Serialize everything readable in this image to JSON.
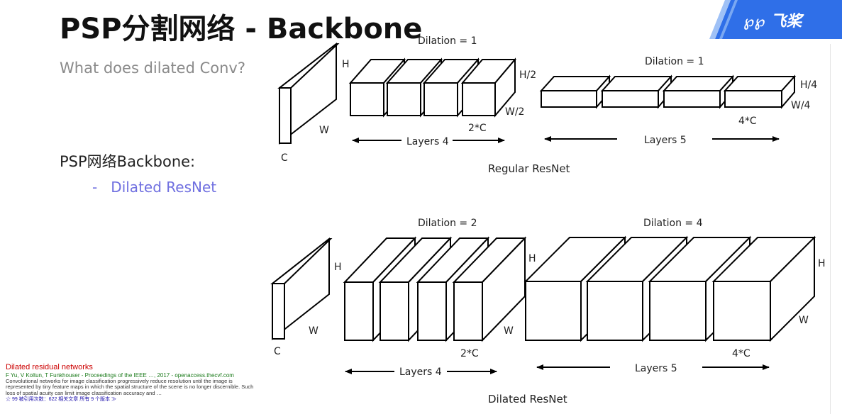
{
  "slide": {
    "title": "PSP分割网络 - Backbone",
    "subtitle": "What does dilated Conv?",
    "section_label": "PSP网络Backbone:",
    "bullet_dash": "-",
    "bullet_text": "Dilated ResNet",
    "logo_text": "飞桨",
    "logo_mark": "℘℘",
    "accent_color": "#2f6fe8"
  },
  "regular": {
    "caption": "Regular ResNet",
    "input": {
      "h": "H",
      "w": "W",
      "c": "C"
    },
    "block1": {
      "dilation": "Dilation = 1",
      "h": "H/2",
      "w": "W/2",
      "c": "2*C",
      "layers": "Layers 4"
    },
    "block2": {
      "dilation": "Dilation = 1",
      "h": "H/4",
      "w": "W/4",
      "c": "4*C",
      "layers": "Layers 5"
    }
  },
  "dilated": {
    "caption": "Dilated ResNet",
    "input": {
      "h": "H",
      "w": "W",
      "c": "C"
    },
    "block1": {
      "dilation": "Dilation = 2",
      "h": "H",
      "w": "W",
      "c": "2*C",
      "layers": "Layers 4"
    },
    "block2": {
      "dilation": "Dilation = 4",
      "h": "H",
      "w": "W",
      "c": "4*C",
      "layers": "Layers 5"
    }
  },
  "reference": {
    "title": "Dilated residual networks",
    "authors": "F Yu, V Koltun, T Funkhouser - Proceedings of the IEEE …, 2017 - openaccess.thecvf.com",
    "body": "Convolutional networks for image classification progressively reduce resolution until the image is represented by tiny feature maps in which the spatial structure of the scene is no longer discernible. Such loss of spatial acuity can limit image classification accuracy and …",
    "actions": "☆  99  被引用次数：622  相关文章  所有 9 个版本  ≫"
  }
}
